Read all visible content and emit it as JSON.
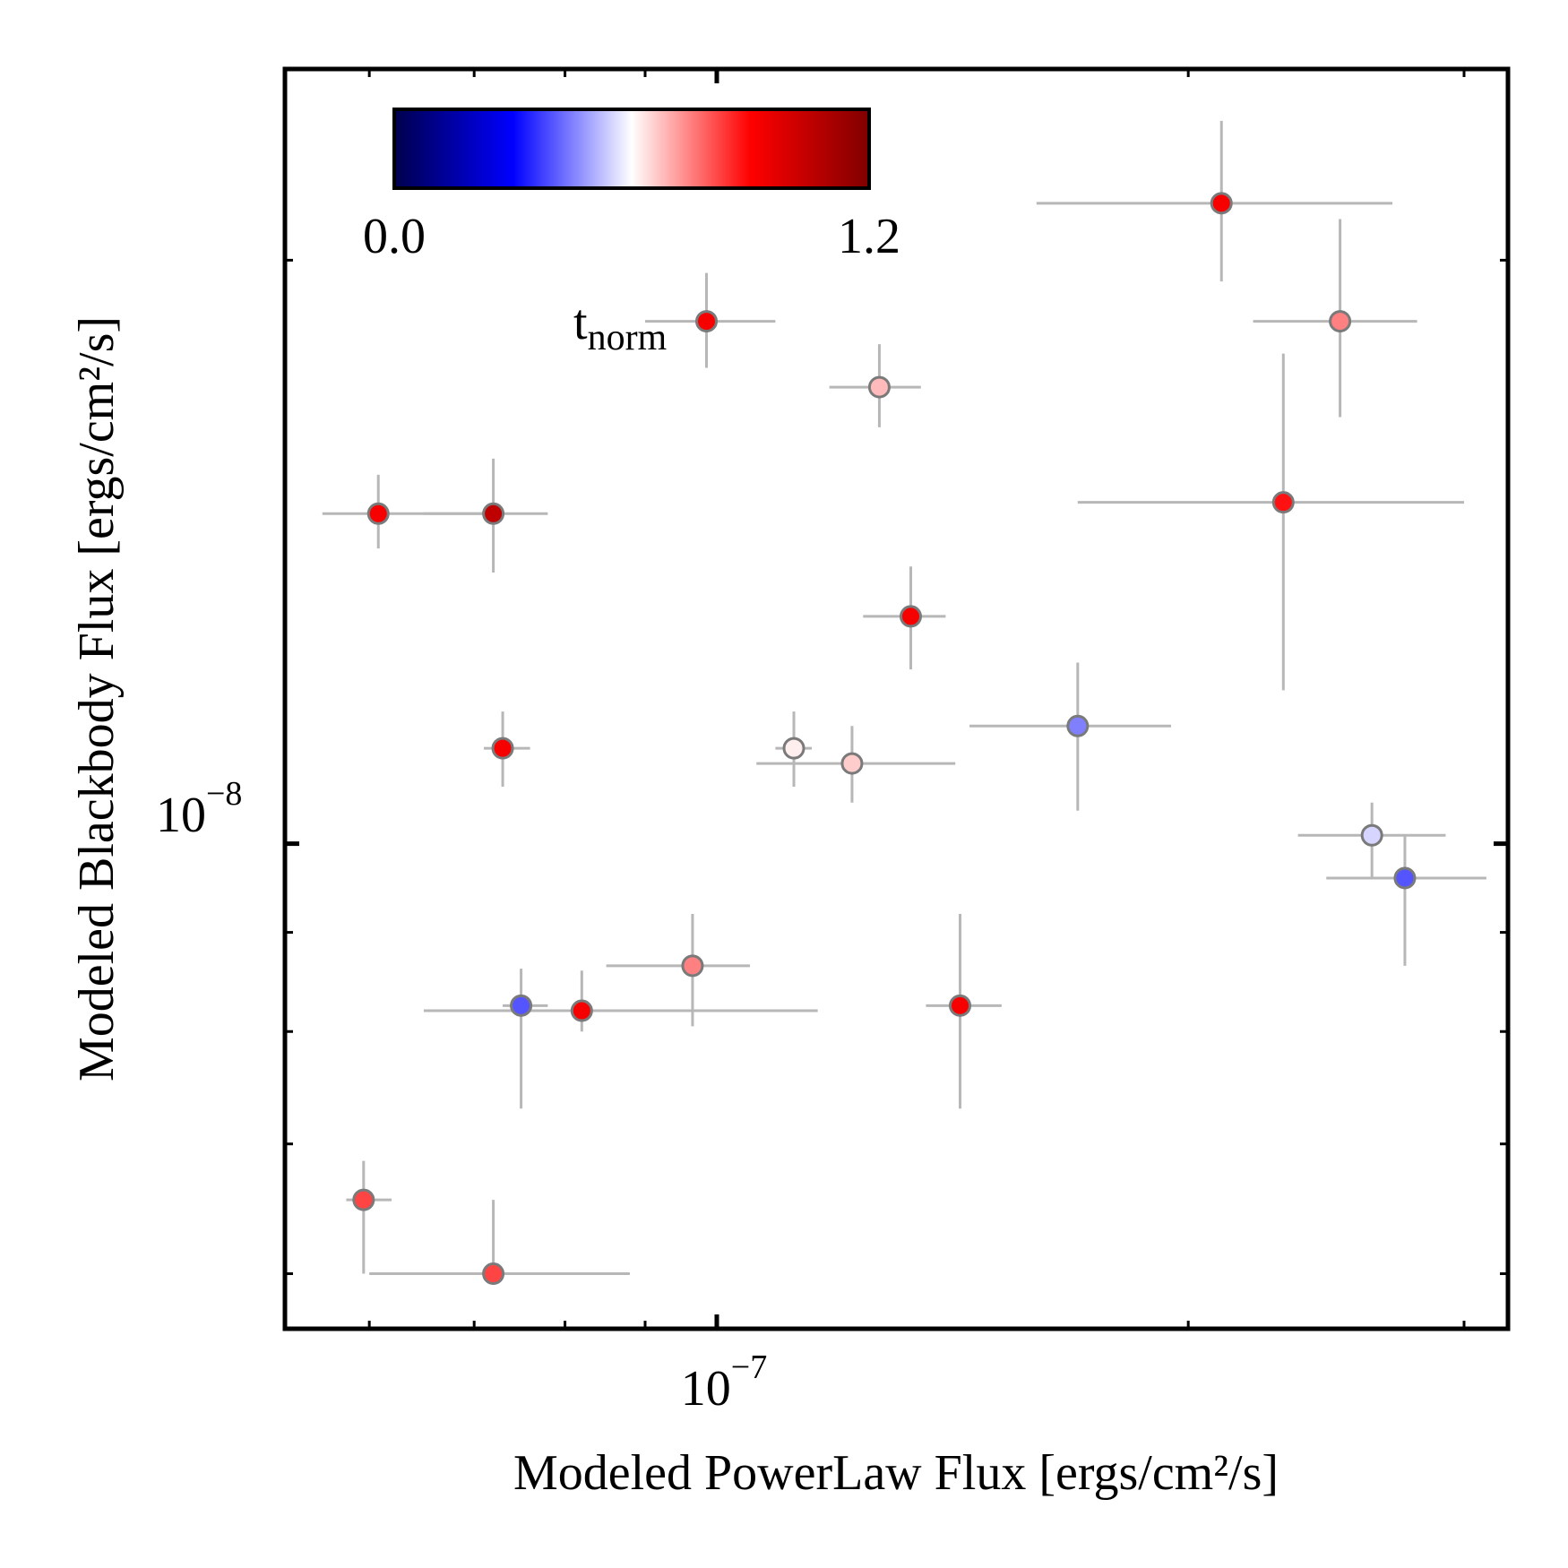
{
  "chart_data": {
    "type": "scatter",
    "xlabel": "Modeled PowerLaw Flux [ergs/cm²/s]",
    "ylabel": "Modeled Blackbody Flux [ergs/cm²/s]",
    "xscale": "log",
    "yscale": "log",
    "xlim": [
      5.3e-08,
      3.2e-07
    ],
    "ylim": [
      5.62e-09,
      2.51e-08
    ],
    "x_tick_label": {
      "base": "10",
      "exponent": "−7"
    },
    "y_tick_label": {
      "base": "10",
      "exponent": "−8"
    },
    "colorbar": {
      "label_main": "t",
      "label_sub": "norm",
      "min_label": "0.0",
      "max_label": "1.2",
      "vmin": 0.0,
      "vmax": 1.2,
      "colormap": "seismic",
      "placement": "top-left inset"
    },
    "errorbar_color": "#b7b7b7",
    "marker_edge_color": "#7a7a7a",
    "points": [
      {
        "x": 2.1e-07,
        "y": 2.14e-08,
        "xerr": [
          1.6e-07,
          2.7e-07
        ],
        "yerr": [
          1.95e-08,
          2.36e-08
        ],
        "t": 0.92
      },
      {
        "x": 2.5e-07,
        "y": 1.86e-08,
        "xerr": [
          2.2e-07,
          2.8e-07
        ],
        "yerr": [
          1.66e-08,
          2.1e-08
        ],
        "t": 0.75
      },
      {
        "x": 9.85e-08,
        "y": 1.86e-08,
        "xerr": [
          9e-08,
          1.09e-07
        ],
        "yerr": [
          1.76e-08,
          1.97e-08
        ],
        "t": 0.92
      },
      {
        "x": 1.27e-07,
        "y": 1.72e-08,
        "xerr": [
          1.18e-07,
          1.35e-07
        ],
        "yerr": [
          1.64e-08,
          1.81e-08
        ],
        "t": 0.68
      },
      {
        "x": 6.08e-08,
        "y": 1.48e-08,
        "xerr": [
          5.6e-08,
          7.1e-08
        ],
        "yerr": [
          1.42e-08,
          1.55e-08
        ],
        "t": 0.92
      },
      {
        "x": 7.2e-08,
        "y": 1.48e-08,
        "xerr": [
          6.5e-08,
          7.8e-08
        ],
        "yerr": [
          1.38e-08,
          1.58e-08
        ],
        "t": 1.05
      },
      {
        "x": 2.3e-07,
        "y": 1.5e-08,
        "xerr": [
          1.7e-07,
          3e-07
        ],
        "yerr": [
          1.2e-08,
          1.79e-08
        ],
        "t": 0.88
      },
      {
        "x": 1.33e-07,
        "y": 1.31e-08,
        "xerr": [
          1.24e-07,
          1.4e-07
        ],
        "yerr": [
          1.23e-08,
          1.39e-08
        ],
        "t": 0.92
      },
      {
        "x": 1.7e-07,
        "y": 1.15e-08,
        "xerr": [
          1.45e-07,
          1.95e-07
        ],
        "yerr": [
          1.04e-08,
          1.24e-08
        ],
        "t": 0.45
      },
      {
        "x": 7.3e-08,
        "y": 1.12e-08,
        "xerr": [
          7.1e-08,
          7.6e-08
        ],
        "yerr": [
          1.07e-08,
          1.17e-08
        ],
        "t": 0.92
      },
      {
        "x": 1.12e-07,
        "y": 1.12e-08,
        "xerr": [
          1.09e-07,
          1.15e-07
        ],
        "yerr": [
          1.07e-08,
          1.17e-08
        ],
        "t": 0.62
      },
      {
        "x": 1.22e-07,
        "y": 1.1e-08,
        "xerr": [
          1.06e-07,
          1.42e-07
        ],
        "yerr": [
          1.05e-08,
          1.15e-08
        ],
        "t": 0.66
      },
      {
        "x": 2.62e-07,
        "y": 1.01e-08,
        "xerr": [
          2.35e-07,
          2.92e-07
        ],
        "yerr": [
          9.6e-09,
          1.05e-08
        ],
        "t": 0.55
      },
      {
        "x": 2.75e-07,
        "y": 9.6e-09,
        "xerr": [
          2.45e-07,
          3.1e-07
        ],
        "yerr": [
          8.65e-09,
          1.01e-08
        ],
        "t": 0.4
      },
      {
        "x": 9.65e-08,
        "y": 8.65e-09,
        "xerr": [
          8.5e-08,
          1.05e-07
        ],
        "yerr": [
          8.05e-09,
          9.2e-09
        ],
        "t": 0.75
      },
      {
        "x": 7.5e-08,
        "y": 8.25e-09,
        "xerr": [
          7.3e-08,
          7.8e-08
        ],
        "yerr": [
          7.3e-09,
          8.62e-09
        ],
        "t": 0.4
      },
      {
        "x": 8.2e-08,
        "y": 8.2e-09,
        "xerr": [
          6.5e-08,
          1.16e-07
        ],
        "yerr": [
          8e-09,
          8.6e-09
        ],
        "t": 0.92
      },
      {
        "x": 1.43e-07,
        "y": 8.25e-09,
        "xerr": [
          1.36e-07,
          1.52e-07
        ],
        "yerr": [
          7.3e-09,
          9.2e-09
        ],
        "t": 0.92
      },
      {
        "x": 5.95e-08,
        "y": 6.55e-09,
        "xerr": [
          5.8e-08,
          6.2e-08
        ],
        "yerr": [
          6e-09,
          6.86e-09
        ],
        "t": 0.82
      },
      {
        "x": 7.2e-08,
        "y": 6e-09,
        "xerr": [
          6e-08,
          8.8e-08
        ],
        "yerr": [
          6e-09,
          6.55e-09
        ],
        "t": 0.82
      }
    ]
  }
}
